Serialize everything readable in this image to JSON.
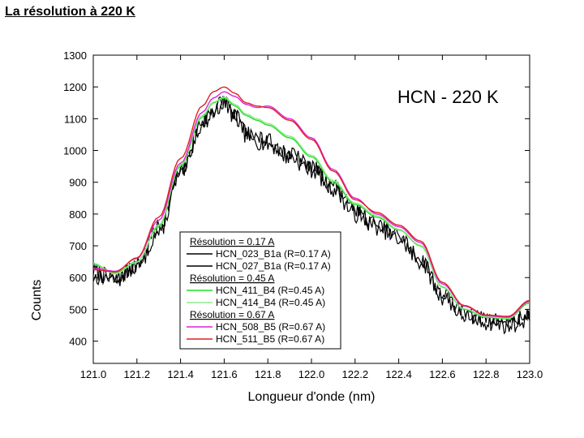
{
  "slide": {
    "title": "La résolution à 220 K"
  },
  "chart_data": {
    "type": "line",
    "title": "HCN - 220 K",
    "xlabel": "Longueur d'onde (nm)",
    "ylabel": "Counts",
    "xlim": [
      121.0,
      123.0
    ],
    "ylim": [
      330,
      1300
    ],
    "x_ticks": [
      121.0,
      121.2,
      121.4,
      121.6,
      121.8,
      122.0,
      122.2,
      122.4,
      122.6,
      122.8,
      123.0
    ],
    "x_tick_labels": [
      "121.0",
      "121.2",
      "121.4",
      "121.6",
      "121.8",
      "122.0",
      "122.2",
      "122.4",
      "122.6",
      "122.8",
      "123.0"
    ],
    "y_ticks": [
      400,
      500,
      600,
      700,
      800,
      900,
      1000,
      1100,
      1200,
      1300
    ],
    "y_tick_labels": [
      "400",
      "500",
      "600",
      "700",
      "800",
      "900",
      "1000",
      "1100",
      "1200",
      "1300"
    ],
    "legend_position": "bottom-center",
    "legend_groups": [
      {
        "heading": "Résolution = 0.17 A",
        "entries": [
          "HCN_023_B1a (R=0.17 A)",
          "HCN_027_B1a (R=0.17 A)"
        ]
      },
      {
        "heading": "Résolution = 0.45 A",
        "entries": [
          "HCN_411_B4 (R=0.45 A)",
          "HCN_414_B4 (R=0.45 A)"
        ]
      },
      {
        "heading": "Résolution = 0.67 A",
        "entries": [
          "HCN_508_B5 (R=0.67 A)",
          "HCN_511_B5 (R=0.67 A)"
        ]
      }
    ],
    "series": [
      {
        "name": "HCN_023_B1a (R=0.17 A)",
        "color": "#000000",
        "noisy": true,
        "noise": 28,
        "seed": 7,
        "x": [
          121.0,
          121.1,
          121.2,
          121.3,
          121.4,
          121.5,
          121.55,
          121.6,
          121.65,
          121.7,
          121.75,
          121.8,
          121.9,
          122.0,
          122.1,
          122.2,
          122.3,
          122.4,
          122.5,
          122.6,
          122.7,
          122.8,
          122.9,
          123.0
        ],
        "values": [
          620,
          590,
          640,
          760,
          930,
          1090,
          1130,
          1160,
          1100,
          1050,
          1030,
          1020,
          980,
          940,
          880,
          800,
          760,
          720,
          650,
          540,
          480,
          460,
          450,
          470
        ]
      },
      {
        "name": "HCN_027_B1a (R=0.17 A)",
        "color": "#000000",
        "noisy": true,
        "noise": 24,
        "seed": 13,
        "x": [
          121.0,
          121.1,
          121.2,
          121.3,
          121.4,
          121.5,
          121.55,
          121.6,
          121.65,
          121.7,
          121.75,
          121.8,
          121.9,
          122.0,
          122.1,
          122.2,
          122.3,
          122.4,
          122.5,
          122.6,
          122.7,
          122.8,
          122.9,
          123.0
        ],
        "values": [
          600,
          600,
          630,
          740,
          920,
          1080,
          1120,
          1150,
          1110,
          1060,
          1040,
          1030,
          990,
          950,
          890,
          810,
          770,
          730,
          660,
          550,
          490,
          470,
          460,
          480
        ]
      },
      {
        "name": "HCN_411_B4 (R=0.45 A)",
        "color": "#22dd22",
        "noisy": false,
        "x": [
          121.0,
          121.1,
          121.2,
          121.3,
          121.4,
          121.5,
          121.55,
          121.6,
          121.65,
          121.7,
          121.75,
          121.8,
          121.9,
          122.0,
          122.1,
          122.2,
          122.3,
          122.4,
          122.5,
          122.6,
          122.7,
          122.8,
          122.9,
          123.0
        ],
        "values": [
          640,
          615,
          650,
          760,
          950,
          1105,
          1150,
          1165,
          1140,
          1110,
          1095,
          1080,
          1040,
          980,
          900,
          830,
          790,
          750,
          700,
          570,
          500,
          475,
          470,
          520
        ]
      },
      {
        "name": "HCN_414_B4 (R=0.45 A)",
        "color": "#90e890",
        "noisy": false,
        "x": [
          121.0,
          121.1,
          121.2,
          121.3,
          121.4,
          121.5,
          121.55,
          121.6,
          121.65,
          121.7,
          121.75,
          121.8,
          121.9,
          122.0,
          122.1,
          122.2,
          122.3,
          122.4,
          122.5,
          122.6,
          122.7,
          122.8,
          122.9,
          123.0
        ],
        "values": [
          645,
          612,
          648,
          765,
          955,
          1110,
          1152,
          1168,
          1145,
          1115,
          1100,
          1085,
          1045,
          985,
          905,
          835,
          795,
          752,
          702,
          572,
          502,
          477,
          472,
          524
        ]
      },
      {
        "name": "HCN_508_B5 (R=0.67 A)",
        "color": "#dd22dd",
        "noisy": false,
        "x": [
          121.0,
          121.1,
          121.2,
          121.3,
          121.4,
          121.5,
          121.55,
          121.6,
          121.65,
          121.7,
          121.75,
          121.8,
          121.9,
          122.0,
          122.1,
          122.2,
          122.3,
          122.4,
          122.5,
          122.6,
          122.7,
          122.8,
          122.9,
          123.0
        ],
        "values": [
          630,
          620,
          660,
          780,
          960,
          1120,
          1165,
          1185,
          1170,
          1145,
          1135,
          1140,
          1100,
          1040,
          940,
          850,
          800,
          760,
          710,
          580,
          510,
          480,
          475,
          525
        ]
      },
      {
        "name": "HCN_511_B5 (R=0.67 A)",
        "color": "#dd2222",
        "noisy": false,
        "x": [
          121.0,
          121.1,
          121.2,
          121.3,
          121.4,
          121.5,
          121.55,
          121.6,
          121.65,
          121.7,
          121.75,
          121.8,
          121.9,
          122.0,
          122.1,
          122.2,
          122.3,
          122.4,
          122.5,
          122.6,
          122.7,
          122.8,
          122.9,
          123.0
        ],
        "values": [
          625,
          618,
          662,
          790,
          975,
          1140,
          1185,
          1200,
          1180,
          1150,
          1140,
          1135,
          1095,
          1035,
          935,
          845,
          805,
          765,
          715,
          585,
          512,
          482,
          478,
          528
        ]
      }
    ]
  }
}
